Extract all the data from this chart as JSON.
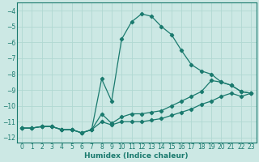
{
  "xlabel": "Humidex (Indice chaleur)",
  "background_color": "#cce8e4",
  "grid_color": "#b0d8d2",
  "line_color": "#1a7a6e",
  "xlim": [
    -0.5,
    23.5
  ],
  "ylim": [
    -12.3,
    -3.5
  ],
  "xticks": [
    0,
    1,
    2,
    3,
    4,
    5,
    6,
    7,
    8,
    9,
    10,
    11,
    12,
    13,
    14,
    15,
    16,
    17,
    18,
    19,
    20,
    21,
    22,
    23
  ],
  "yticks": [
    -12,
    -11,
    -10,
    -9,
    -8,
    -7,
    -6,
    -5,
    -4
  ],
  "series": [
    {
      "x": [
        0,
        1,
        2,
        3,
        4,
        5,
        6,
        7,
        8,
        9,
        10,
        11,
        12,
        13,
        14,
        15,
        16,
        17,
        18,
        19,
        20,
        21,
        22,
        23
      ],
      "y": [
        -11.4,
        -11.4,
        -11.3,
        -11.3,
        -11.5,
        -11.5,
        -11.7,
        -11.5,
        -8.3,
        -9.7,
        -5.8,
        -4.7,
        -4.2,
        -4.35,
        -5.0,
        -5.5,
        -6.5,
        -7.4,
        -7.8,
        -8.0,
        -8.5,
        -8.7,
        -9.1,
        -9.2
      ]
    },
    {
      "x": [
        0,
        1,
        2,
        3,
        4,
        5,
        6,
        7,
        8,
        9,
        10,
        11,
        12,
        13,
        14,
        15,
        16,
        17,
        18,
        19,
        20,
        21,
        22,
        23
      ],
      "y": [
        -11.4,
        -11.4,
        -11.3,
        -11.3,
        -11.5,
        -11.5,
        -11.7,
        -11.5,
        -10.5,
        -11.1,
        -10.7,
        -10.5,
        -10.5,
        -10.4,
        -10.3,
        -10.0,
        -9.7,
        -9.4,
        -9.1,
        -8.4,
        -8.5,
        -8.7,
        -9.1,
        -9.2
      ]
    },
    {
      "x": [
        0,
        1,
        2,
        3,
        4,
        5,
        6,
        7,
        8,
        9,
        10,
        11,
        12,
        13,
        14,
        15,
        16,
        17,
        18,
        19,
        20,
        21,
        22,
        23
      ],
      "y": [
        -11.4,
        -11.4,
        -11.3,
        -11.3,
        -11.5,
        -11.5,
        -11.7,
        -11.5,
        -11.0,
        -11.2,
        -11.0,
        -11.0,
        -11.0,
        -10.9,
        -10.8,
        -10.6,
        -10.4,
        -10.2,
        -9.9,
        -9.7,
        -9.4,
        -9.2,
        -9.4,
        -9.2
      ]
    }
  ]
}
